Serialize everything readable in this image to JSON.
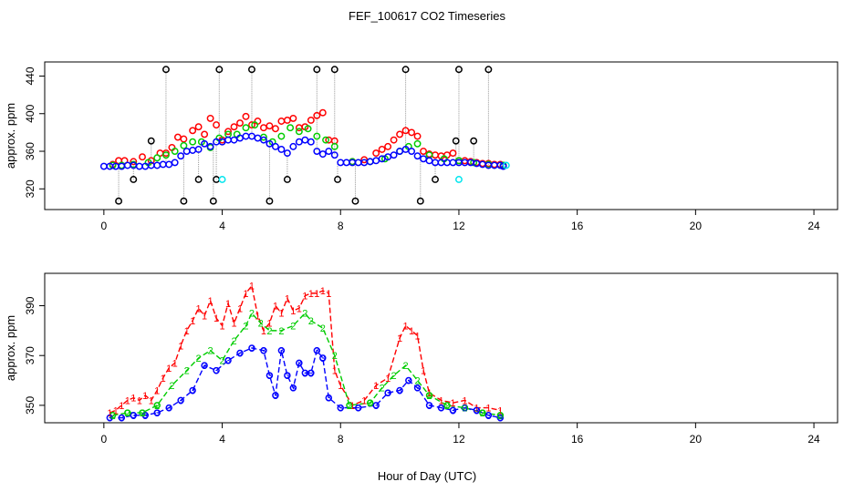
{
  "chart_data": [
    {
      "type": "scatter",
      "title": "FEF_100617  CO2 Timeseries",
      "xlabel": "",
      "ylabel": "approx. ppm",
      "xlim": [
        -2,
        24.8
      ],
      "ylim": [
        298,
        455
      ],
      "xticks": [
        0,
        4,
        8,
        12,
        16,
        20,
        24
      ],
      "yticks": [
        320,
        360,
        400,
        440
      ],
      "series": [
        {
          "name": "red",
          "color": "#ff0000",
          "x": [
            0.3,
            0.5,
            0.7,
            1.0,
            1.3,
            1.6,
            1.9,
            2.1,
            2.3,
            2.5,
            2.7,
            3.0,
            3.2,
            3.4,
            3.6,
            3.8,
            4.0,
            4.2,
            4.4,
            4.6,
            4.8,
            5.0,
            5.2,
            5.4,
            5.6,
            5.8,
            6.0,
            6.2,
            6.4,
            6.6,
            6.8,
            7.0,
            7.2,
            7.4,
            7.6,
            7.8,
            8.4,
            8.8,
            9.2,
            9.4,
            9.6,
            9.8,
            10.0,
            10.2,
            10.4,
            10.6,
            10.8,
            11.0,
            11.2,
            11.4,
            11.6,
            11.8,
            12.0,
            12.2,
            12.4,
            12.6,
            12.8,
            13.0,
            13.2,
            13.4,
            13.5
          ],
          "y": [
            346,
            350,
            350,
            349,
            354,
            350,
            358,
            358,
            364,
            375,
            373,
            382,
            386,
            378,
            395,
            388,
            372,
            381,
            386,
            390,
            397,
            388,
            392,
            385,
            387,
            384,
            392,
            393,
            395,
            385,
            386,
            393,
            398,
            401,
            372,
            371,
            349,
            351,
            358,
            362,
            365,
            372,
            378,
            382,
            380,
            376,
            360,
            357,
            356,
            355,
            356,
            358,
            350,
            350,
            349,
            348,
            347,
            347,
            346,
            346,
            345
          ]
        },
        {
          "name": "green",
          "color": "#00cc00",
          "x": [
            0.3,
            0.6,
            1.0,
            1.5,
            1.8,
            2.1,
            2.4,
            2.7,
            3.0,
            3.3,
            3.6,
            3.9,
            4.2,
            4.5,
            4.8,
            5.1,
            5.4,
            5.7,
            6.0,
            6.3,
            6.6,
            6.9,
            7.2,
            7.5,
            7.8,
            8.4,
            9.0,
            9.5,
            10.0,
            10.3,
            10.6,
            11.0,
            11.5,
            12.0,
            12.5,
            13.0,
            13.5
          ],
          "y": [
            345,
            345,
            346,
            348,
            353,
            356,
            360,
            366,
            370,
            370,
            364,
            374,
            378,
            378,
            385,
            388,
            375,
            370,
            376,
            385,
            381,
            384,
            376,
            372,
            365,
            349,
            349,
            352,
            360,
            365,
            368,
            356,
            352,
            350,
            348,
            346,
            345
          ]
        },
        {
          "name": "blue",
          "color": "#0000ff",
          "x": [
            0.0,
            0.2,
            0.4,
            0.6,
            0.8,
            1.0,
            1.2,
            1.4,
            1.6,
            1.8,
            2.0,
            2.2,
            2.4,
            2.6,
            2.8,
            3.0,
            3.2,
            3.4,
            3.6,
            3.8,
            4.0,
            4.2,
            4.4,
            4.6,
            4.8,
            5.0,
            5.2,
            5.4,
            5.6,
            5.8,
            6.0,
            6.2,
            6.4,
            6.6,
            6.8,
            7.0,
            7.2,
            7.4,
            7.6,
            7.8,
            8.0,
            8.2,
            8.4,
            8.6,
            8.8,
            9.0,
            9.2,
            9.4,
            9.6,
            9.8,
            10.0,
            10.2,
            10.4,
            10.6,
            10.8,
            11.0,
            11.2,
            11.4,
            11.6,
            11.8,
            12.0,
            12.2,
            12.4,
            12.6,
            12.8,
            13.0,
            13.2,
            13.4,
            13.5
          ],
          "y": [
            344,
            344,
            344,
            344,
            345,
            345,
            344,
            344,
            345,
            345,
            346,
            346,
            348,
            355,
            360,
            361,
            362,
            368,
            365,
            370,
            370,
            372,
            372,
            374,
            376,
            376,
            374,
            372,
            368,
            365,
            362,
            358,
            365,
            370,
            372,
            370,
            360,
            357,
            360,
            356,
            348,
            348,
            348,
            348,
            348,
            349,
            350,
            352,
            354,
            356,
            360,
            362,
            360,
            355,
            352,
            350,
            348,
            348,
            348,
            348,
            348,
            348,
            348,
            347,
            346,
            345,
            345,
            345,
            344
          ]
        },
        {
          "name": "black",
          "color": "#000000",
          "x": [
            0.5,
            1.0,
            1.6,
            2.1,
            2.7,
            3.2,
            3.7,
            3.8,
            3.9,
            5.0,
            5.6,
            6.2,
            7.2,
            7.8,
            7.9,
            8.5,
            10.2,
            10.7,
            11.2,
            11.9,
            12.0,
            12.5,
            13.0
          ],
          "y": [
            307,
            330,
            371,
            447,
            307,
            330,
            307,
            330,
            447,
            447,
            307,
            330,
            447,
            447,
            330,
            307,
            447,
            307,
            330,
            371,
            447,
            371,
            447
          ]
        },
        {
          "name": "cyan",
          "color": "#00e5ee",
          "x": [
            4.0,
            12.0,
            13.6
          ],
          "y": [
            330,
            330,
            345
          ]
        }
      ]
    },
    {
      "type": "line",
      "title": "",
      "xlabel": "Hour of Day (UTC)",
      "ylabel": "approx. ppm",
      "xlim": [
        -2,
        24.8
      ],
      "ylim": [
        343,
        403
      ],
      "xticks": [
        0,
        4,
        8,
        12,
        16,
        20,
        24
      ],
      "yticks": [
        350,
        370,
        390
      ],
      "series": [
        {
          "name": "1",
          "label": "1",
          "color": "#ff0000",
          "x": [
            0.2,
            0.4,
            0.6,
            0.8,
            1.0,
            1.2,
            1.4,
            1.6,
            1.8,
            2.0,
            2.2,
            2.4,
            2.6,
            2.8,
            3.0,
            3.2,
            3.4,
            3.6,
            3.8,
            4.0,
            4.2,
            4.4,
            4.6,
            4.8,
            5.0,
            5.2,
            5.4,
            5.6,
            5.8,
            6.0,
            6.2,
            6.4,
            6.6,
            6.8,
            7.0,
            7.2,
            7.4,
            7.6,
            7.8,
            8.0,
            8.4,
            8.8,
            9.2,
            9.6,
            10.0,
            10.2,
            10.4,
            10.6,
            10.8,
            11.0,
            11.4,
            11.8,
            12.2,
            12.6,
            13.0,
            13.4
          ],
          "y": [
            347,
            348,
            350,
            352,
            353,
            352,
            354,
            352,
            356,
            361,
            365,
            367,
            374,
            380,
            384,
            389,
            386,
            392,
            385,
            382,
            391,
            383,
            389,
            395,
            398,
            386,
            380,
            383,
            390,
            387,
            393,
            388,
            389,
            394,
            395,
            395,
            396,
            395,
            364,
            358,
            350,
            352,
            358,
            361,
            377,
            382,
            380,
            378,
            364,
            355,
            352,
            351,
            352,
            349,
            349,
            348
          ]
        },
        {
          "name": "2",
          "label": "2",
          "color": "#00cc00",
          "x": [
            0.3,
            0.8,
            1.3,
            1.8,
            2.3,
            2.8,
            3.2,
            3.6,
            4.0,
            4.4,
            4.8,
            5.0,
            5.3,
            5.6,
            6.0,
            6.4,
            6.8,
            7.0,
            7.4,
            7.8,
            8.3,
            9.0,
            9.4,
            9.8,
            10.2,
            10.6,
            11.0,
            11.6,
            12.2,
            12.8,
            13.4
          ],
          "y": [
            346,
            347,
            347,
            350,
            358,
            364,
            369,
            372,
            368,
            376,
            382,
            387,
            383,
            380,
            380,
            382,
            387,
            384,
            381,
            370,
            350,
            351,
            357,
            362,
            366,
            360,
            354,
            350,
            349,
            347,
            346
          ]
        },
        {
          "name": "3",
          "label": "3",
          "color": "#0000ff",
          "x": [
            0.2,
            0.6,
            1.0,
            1.4,
            1.8,
            2.2,
            2.6,
            3.0,
            3.4,
            3.8,
            4.2,
            4.6,
            5.0,
            5.4,
            5.6,
            5.8,
            6.0,
            6.2,
            6.4,
            6.6,
            6.8,
            7.0,
            7.2,
            7.4,
            7.6,
            8.0,
            8.6,
            9.2,
            9.6,
            10.0,
            10.3,
            10.6,
            11.0,
            11.4,
            11.8,
            12.2,
            12.6,
            13.0,
            13.4
          ],
          "y": [
            345,
            345,
            346,
            346,
            347,
            349,
            352,
            356,
            366,
            364,
            368,
            371,
            373,
            372,
            362,
            354,
            372,
            362,
            357,
            367,
            363,
            363,
            372,
            369,
            353,
            349,
            349,
            350,
            355,
            356,
            360,
            357,
            350,
            349,
            348,
            349,
            348,
            346,
            345
          ]
        }
      ]
    }
  ]
}
